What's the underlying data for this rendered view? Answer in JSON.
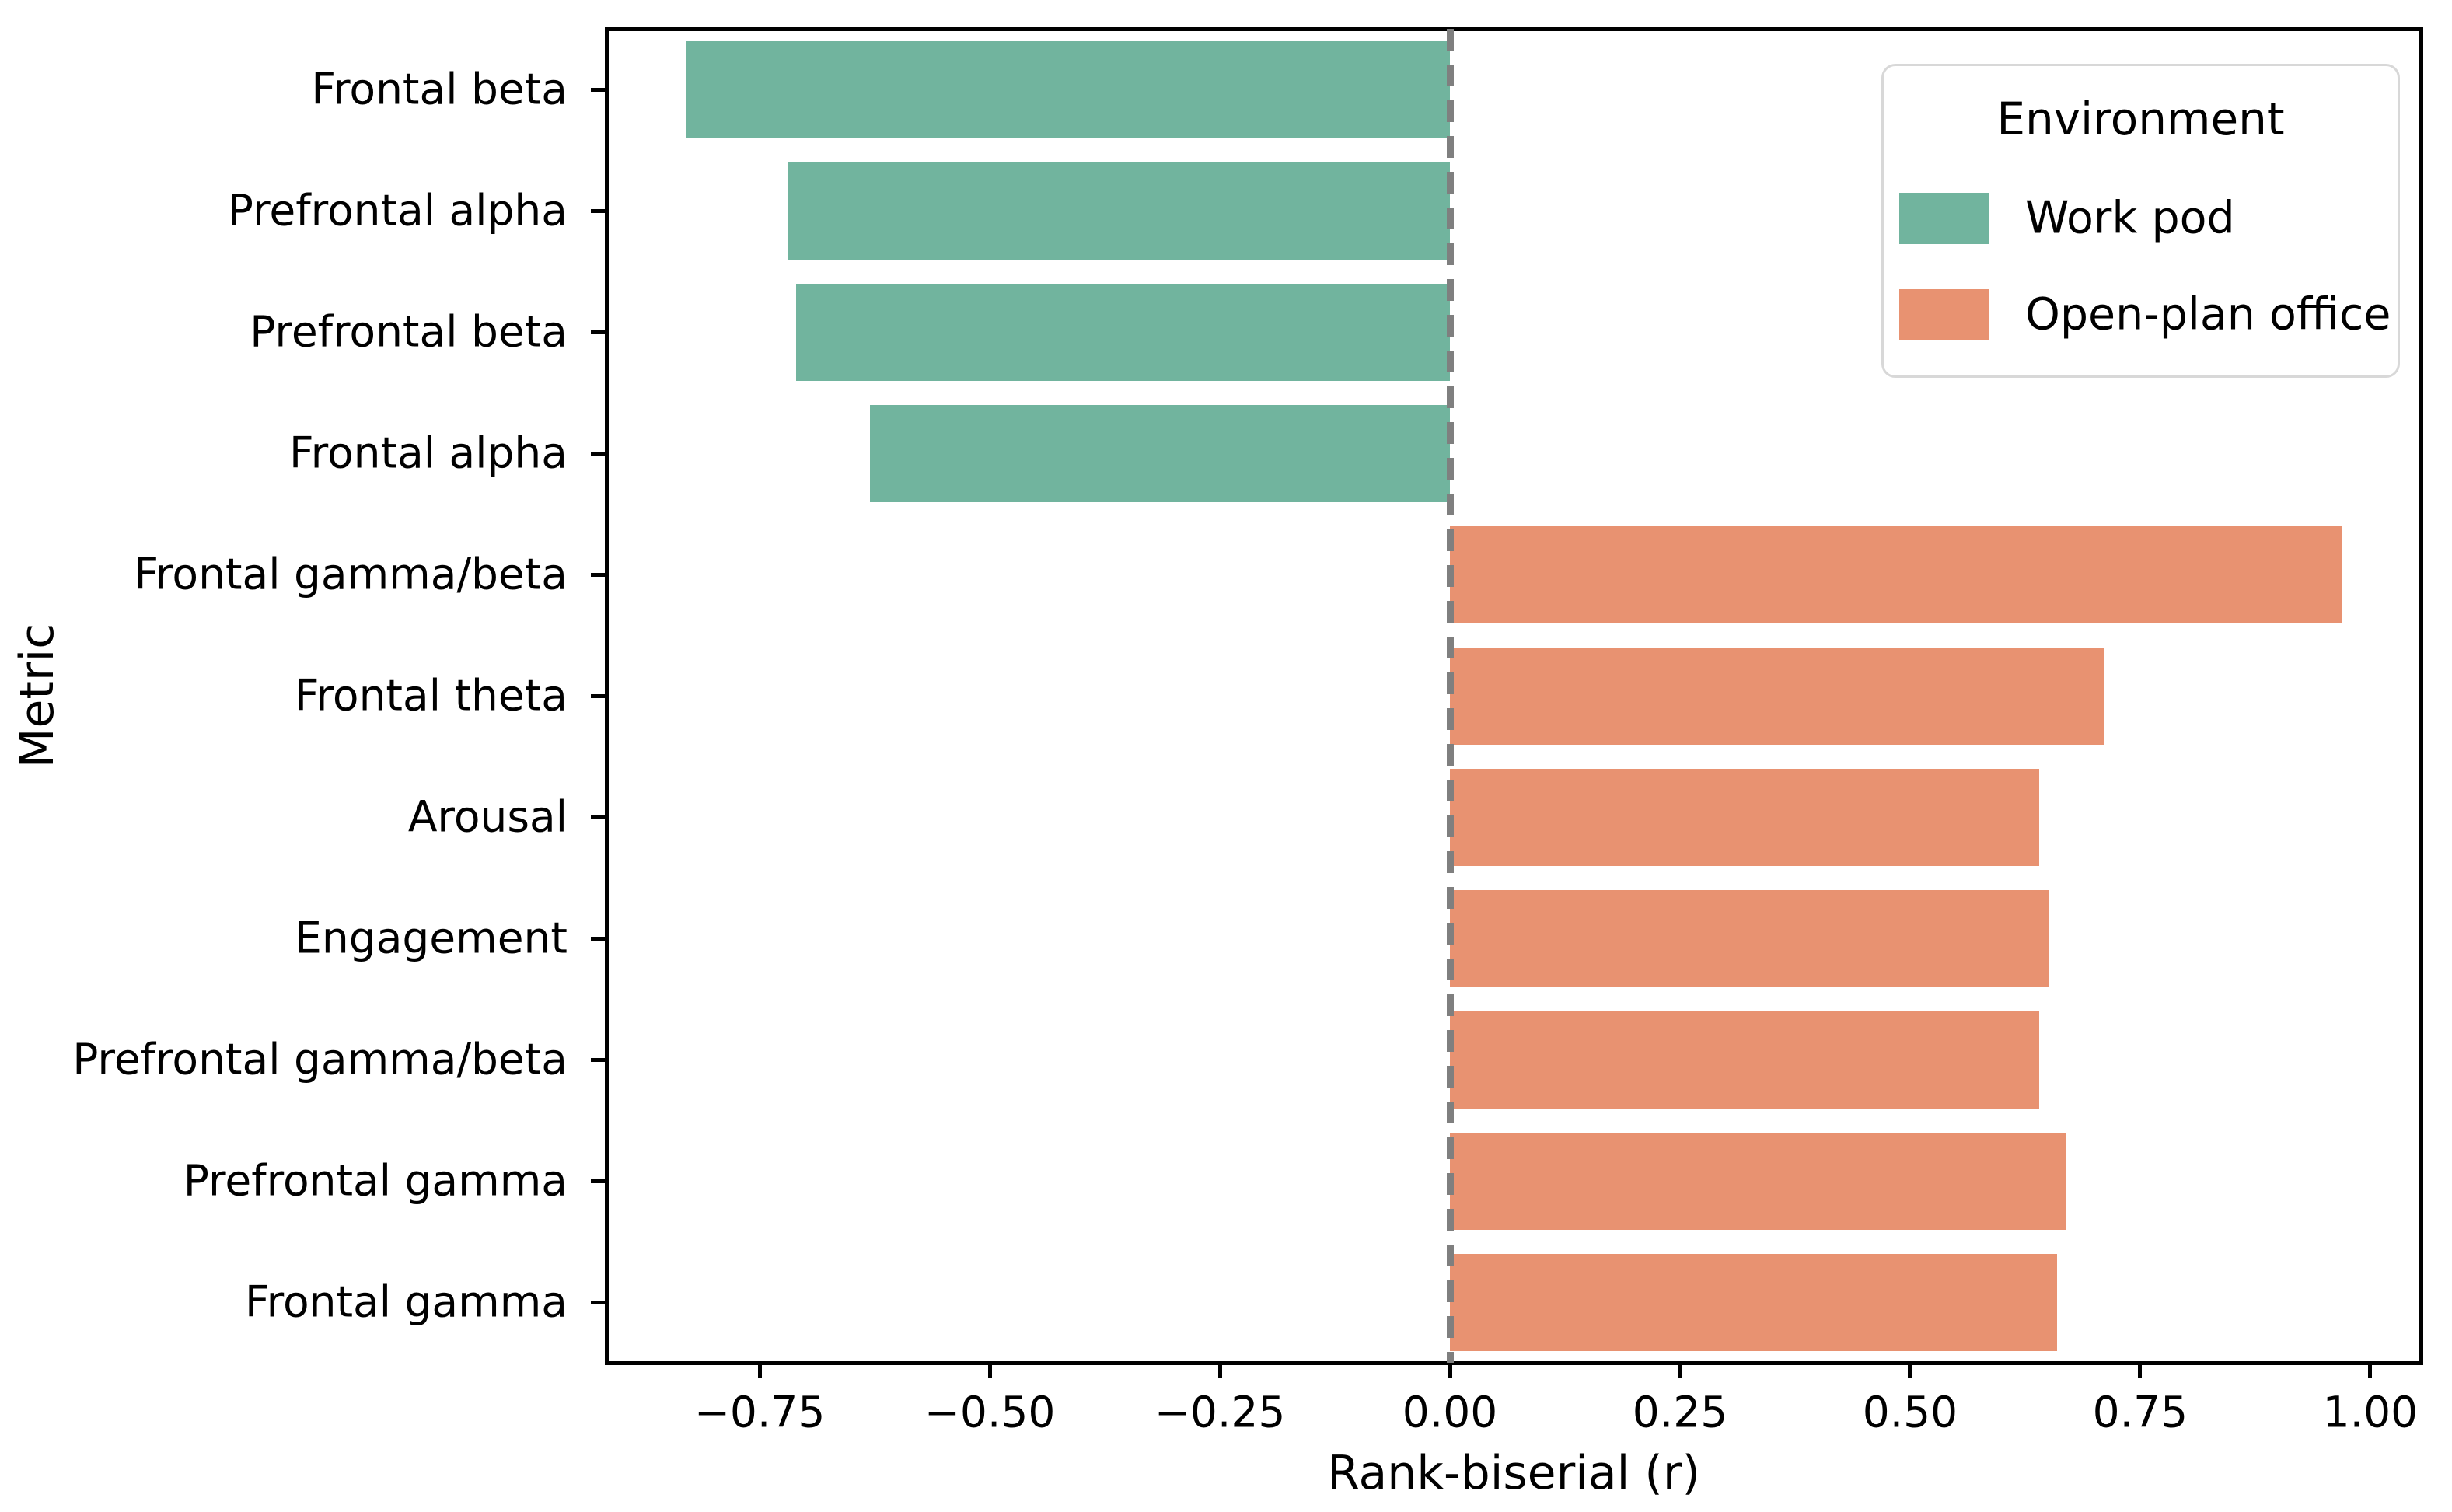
{
  "chart_data": {
    "type": "bar",
    "orientation": "horizontal",
    "title": "",
    "xlabel": "Rank-biserial (r)",
    "ylabel": "Metric",
    "xlim": [
      -0.9165,
      1.055
    ],
    "grid": false,
    "zero_reference_line": {
      "x": 0.0,
      "style": "dashed",
      "color": "#7f7f7f"
    },
    "x_ticks": [
      -0.75,
      -0.5,
      -0.25,
      0.0,
      0.25,
      0.5,
      0.75,
      1.0
    ],
    "x_tick_labels": [
      "−0.75",
      "−0.50",
      "−0.25",
      "0.00",
      "0.25",
      "0.50",
      "0.75",
      "1.00"
    ],
    "categories": [
      "Frontal beta",
      "Prefrontal alpha",
      "Prefrontal beta",
      "Frontal alpha",
      "Frontal gamma/beta",
      "Frontal theta",
      "Arousal",
      "Engagement",
      "Prefrontal gamma/beta",
      "Prefrontal gamma",
      "Frontal gamma"
    ],
    "bars": [
      {
        "metric": "Frontal beta",
        "value": -0.83,
        "environment": "Work pod"
      },
      {
        "metric": "Prefrontal alpha",
        "value": -0.72,
        "environment": "Work pod"
      },
      {
        "metric": "Prefrontal beta",
        "value": -0.71,
        "environment": "Work pod"
      },
      {
        "metric": "Frontal alpha",
        "value": -0.63,
        "environment": "Work pod"
      },
      {
        "metric": "Frontal gamma/beta",
        "value": 0.97,
        "environment": "Open-plan office"
      },
      {
        "metric": "Frontal theta",
        "value": 0.71,
        "environment": "Open-plan office"
      },
      {
        "metric": "Arousal",
        "value": 0.64,
        "environment": "Open-plan office"
      },
      {
        "metric": "Engagement",
        "value": 0.65,
        "environment": "Open-plan office"
      },
      {
        "metric": "Prefrontal gamma/beta",
        "value": 0.64,
        "environment": "Open-plan office"
      },
      {
        "metric": "Prefrontal gamma",
        "value": 0.67,
        "environment": "Open-plan office"
      },
      {
        "metric": "Frontal gamma",
        "value": 0.66,
        "environment": "Open-plan office"
      }
    ],
    "legend": {
      "title": "Environment",
      "position": "upper right",
      "entries": [
        {
          "label": "Work pod",
          "color": "#71b49e"
        },
        {
          "label": "Open-plan office",
          "color": "#e89271"
        }
      ]
    }
  }
}
